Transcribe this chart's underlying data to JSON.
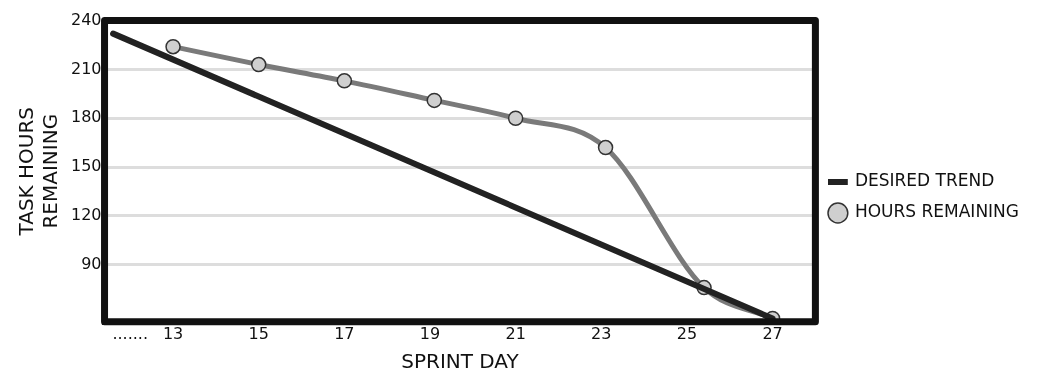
{
  "chart_data": {
    "type": "line",
    "xlabel": "SPRINT DAY",
    "ylabel": "TASK HOURS\nREMAINING",
    "xlim": [
      11.4,
      28
    ],
    "xticks": [
      {
        "value": 12,
        "label": "......."
      },
      13,
      15,
      17,
      19,
      21,
      23,
      25,
      27
    ],
    "ylim": [
      55,
      240
    ],
    "yticks": [
      90,
      120,
      150,
      180,
      210,
      240
    ],
    "grid": "y",
    "legend": "right",
    "series": [
      {
        "name": "DESIRED TREND",
        "color": "#222222",
        "x": [
          11.6,
          27
        ],
        "values": [
          232,
          57
        ]
      },
      {
        "name": "HOURS REMAINING",
        "color": "#7a7a7a",
        "x": [
          13,
          15,
          17,
          19.1,
          21,
          23.1,
          25.4,
          27
        ],
        "values": [
          224,
          213,
          203,
          191,
          180,
          162,
          76,
          57
        ],
        "marker": "circle"
      }
    ]
  }
}
